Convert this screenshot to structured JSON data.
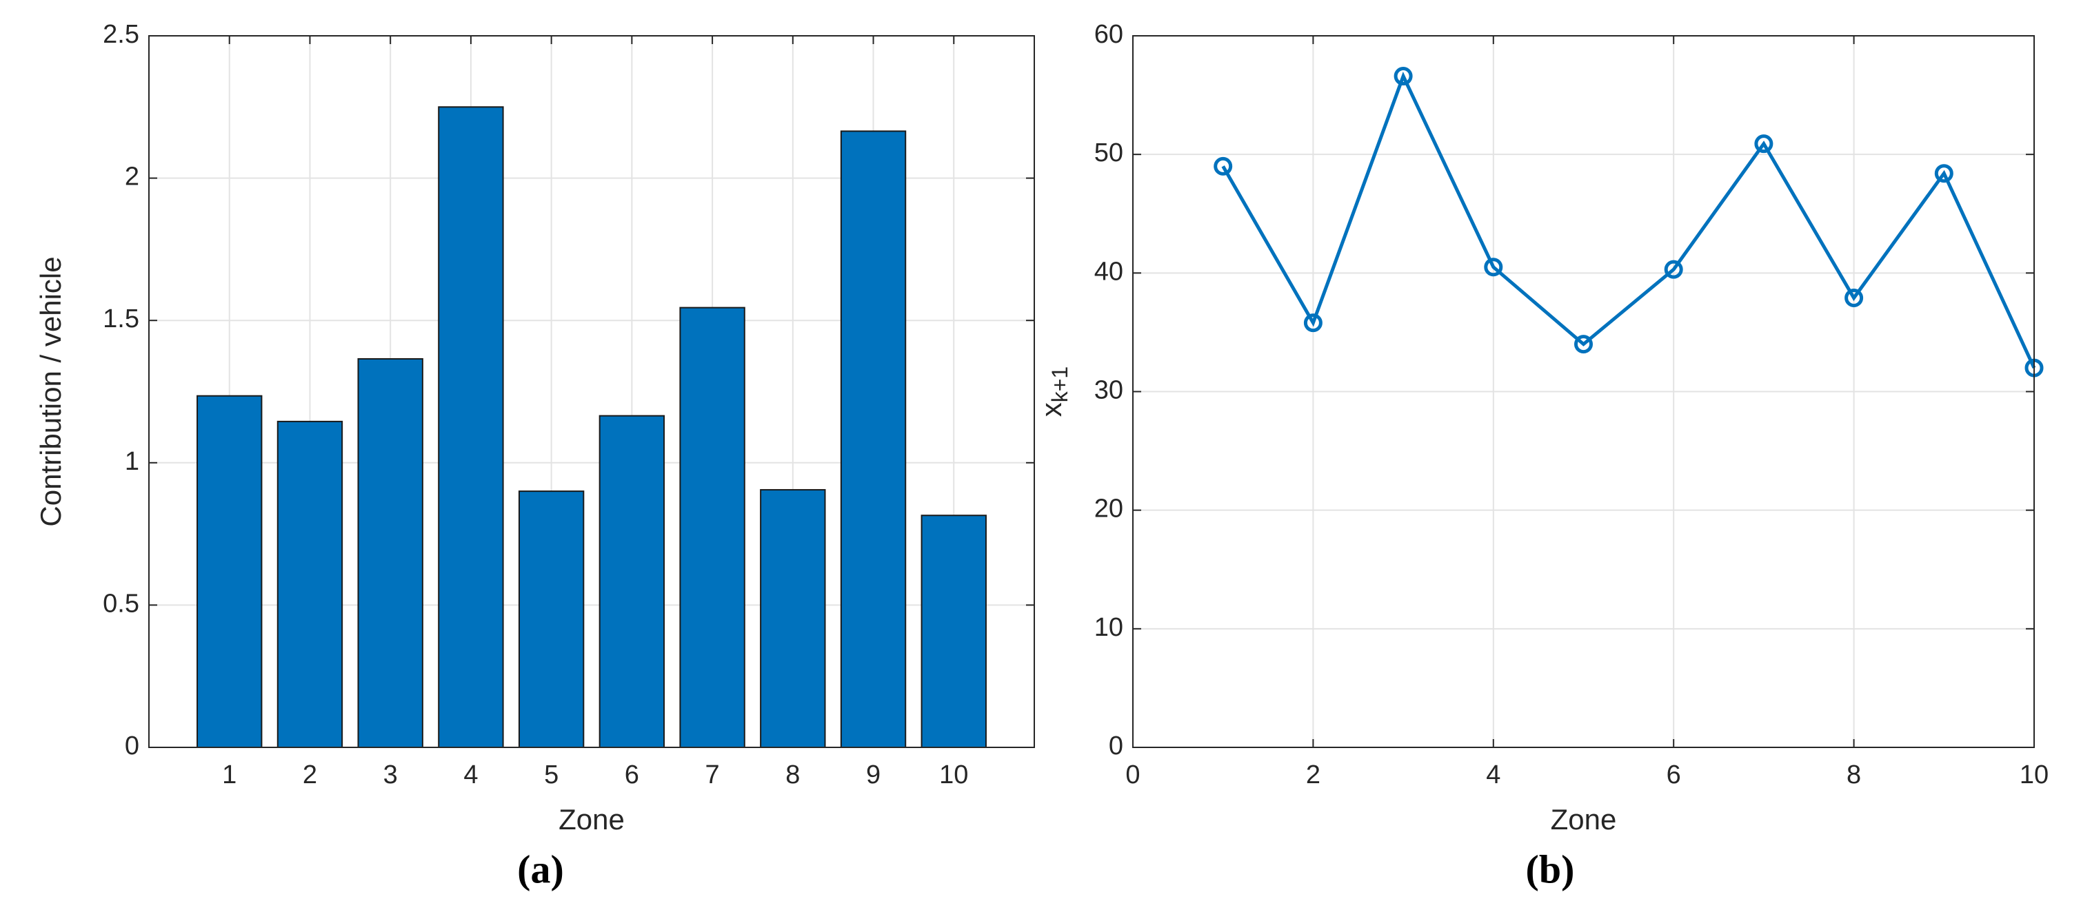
{
  "chart_data": [
    {
      "type": "bar",
      "xlabel": "Zone",
      "ylabel": "Contribution / vehicle",
      "caption": "(a)",
      "x": [
        1,
        2,
        3,
        4,
        5,
        6,
        7,
        8,
        9,
        10
      ],
      "values": [
        1.235,
        1.145,
        1.365,
        2.25,
        0.9,
        1.165,
        1.545,
        0.905,
        2.165,
        0.815
      ],
      "color": "#0072bd",
      "xlim": [
        0,
        11
      ],
      "xticks": [
        1,
        2,
        3,
        4,
        5,
        6,
        7,
        8,
        9,
        10
      ],
      "ylim": [
        0,
        2.5
      ],
      "yticks": [
        0,
        0.5,
        1,
        1.5,
        2,
        2.5
      ],
      "grid": true
    },
    {
      "type": "line",
      "xlabel": "Zone",
      "ylabel": "x",
      "ylabel_subscript": "k+1",
      "caption": "(b)",
      "x": [
        1,
        2,
        3,
        4,
        5,
        6,
        7,
        8,
        9,
        10
      ],
      "values": [
        49,
        35.8,
        56.6,
        40.5,
        34,
        40.3,
        50.9,
        37.9,
        48.4,
        32
      ],
      "color": "#0072bd",
      "xlim": [
        0,
        10
      ],
      "xticks": [
        0,
        2,
        4,
        6,
        8,
        10
      ],
      "ylim": [
        0,
        60
      ],
      "yticks": [
        0,
        10,
        20,
        30,
        40,
        50,
        60
      ],
      "grid": true
    }
  ]
}
